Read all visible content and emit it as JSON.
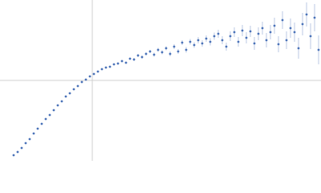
{
  "chart_data": {
    "type": "scatter",
    "x": [
      17,
      22,
      27,
      32,
      37,
      42,
      47,
      52,
      57,
      62,
      67,
      72,
      77,
      82,
      87,
      92,
      97,
      102,
      107,
      112,
      117,
      122,
      127,
      132,
      137,
      142,
      147,
      152,
      157,
      162,
      167,
      172,
      177,
      182,
      187,
      192,
      197,
      202,
      207,
      212,
      217,
      222,
      227,
      232,
      237,
      242,
      247,
      252,
      257,
      262,
      267,
      272,
      277,
      282,
      287,
      292,
      297,
      302,
      307,
      312,
      317,
      322,
      327,
      332,
      337,
      342,
      347,
      352,
      357,
      362,
      367,
      372,
      377,
      382,
      387,
      392,
      397
    ],
    "values": [
      7,
      11,
      16,
      22,
      27,
      34,
      40,
      46,
      52,
      57,
      63,
      69,
      74,
      80,
      84,
      89,
      93,
      98,
      101,
      105,
      108,
      111,
      114,
      116,
      117,
      120,
      121,
      124,
      122,
      127,
      126,
      131,
      129,
      133,
      136,
      132,
      138,
      135,
      140,
      133,
      142,
      136,
      147,
      138,
      148,
      144,
      150,
      146,
      152,
      148,
      155,
      158,
      150,
      142,
      155,
      160,
      148,
      162,
      153,
      161,
      146,
      158,
      165,
      150,
      160,
      168,
      145,
      175,
      150,
      165,
      160,
      140,
      170,
      182,
      155,
      178,
      138
    ],
    "errors": [
      1,
      1,
      1,
      1,
      1,
      1,
      1,
      1,
      1,
      1,
      1,
      1,
      1,
      1,
      1,
      1,
      1,
      1,
      1,
      1,
      1,
      1,
      1,
      1,
      1,
      1,
      1.5,
      1.5,
      1.5,
      1.5,
      2,
      2,
      2,
      2,
      2,
      2.5,
      2.5,
      2.5,
      2.5,
      3,
      3,
      3,
      3,
      3.5,
      3.5,
      3.5,
      4,
      4,
      4,
      4.5,
      4.5,
      5,
      5,
      5,
      6,
      6,
      6,
      7,
      7,
      7,
      8,
      8,
      8,
      9,
      9,
      10,
      10,
      11,
      11,
      12,
      12,
      13,
      14,
      15,
      16,
      17,
      18
    ],
    "color": "#4a72b8",
    "error_color": "#aabbdd",
    "xlim": [
      0,
      400
    ],
    "ylim": [
      0,
      200
    ],
    "xticks": [
      115
    ],
    "yticks": [
      100
    ],
    "grid": true,
    "tick_labels": false
  }
}
